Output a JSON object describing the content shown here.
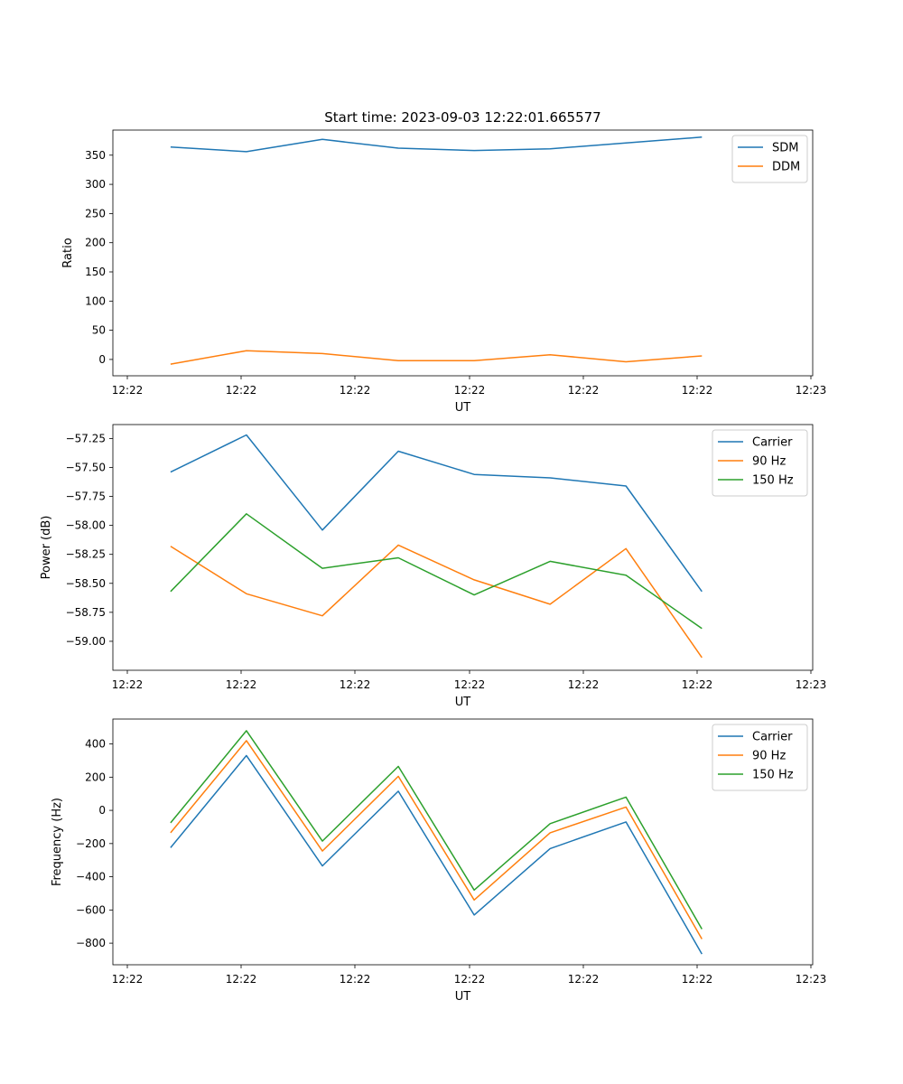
{
  "title": "Start time: 2023-09-03 12:22:01.665577",
  "chart_data": [
    {
      "type": "line",
      "xlabel": "UT",
      "ylabel": "Ratio",
      "x_ticks": [
        "12:22",
        "12:22",
        "12:22",
        "12:22",
        "12:22",
        "12:22",
        "12:23"
      ],
      "x": [
        1,
        2,
        3,
        4,
        5,
        6,
        7,
        8
      ],
      "xlim": [
        0.24,
        9.46
      ],
      "ylim": [
        -28,
        393
      ],
      "yticks": [
        0,
        50,
        100,
        150,
        200,
        250,
        300,
        350
      ],
      "ytick_labels": [
        "0",
        "50",
        "100",
        "150",
        "200",
        "250",
        "300",
        "350"
      ],
      "legend_loc": "upper right",
      "series": [
        {
          "name": "SDM",
          "color": "#1f77b4",
          "values": [
            364,
            356,
            377,
            362,
            358,
            361,
            371,
            381
          ]
        },
        {
          "name": "DDM",
          "color": "#ff7f0e",
          "values": [
            -8,
            15,
            10,
            -2,
            -2,
            8,
            -4,
            6
          ]
        }
      ]
    },
    {
      "type": "line",
      "xlabel": "UT",
      "ylabel": "Power (dB)",
      "x_ticks": [
        "12:22",
        "12:22",
        "12:22",
        "12:22",
        "12:22",
        "12:22",
        "12:23"
      ],
      "x": [
        1,
        2,
        3,
        4,
        5,
        6,
        7,
        8
      ],
      "xlim": [
        0.24,
        9.46
      ],
      "ylim": [
        -59.25,
        -57.13
      ],
      "yticks": [
        -59.0,
        -58.75,
        -58.5,
        -58.25,
        -58.0,
        -57.75,
        -57.5,
        -57.25
      ],
      "ytick_labels": [
        "−59.00",
        "−58.75",
        "−58.50",
        "−58.25",
        "−58.00",
        "−57.75",
        "−57.50",
        "−57.25"
      ],
      "legend_loc": "upper right",
      "series": [
        {
          "name": "Carrier",
          "color": "#1f77b4",
          "values": [
            -57.54,
            -57.22,
            -58.04,
            -57.36,
            -57.56,
            -57.59,
            -57.66,
            -58.57
          ]
        },
        {
          "name": "90 Hz",
          "color": "#ff7f0e",
          "values": [
            -58.18,
            -58.59,
            -58.78,
            -58.17,
            -58.47,
            -58.68,
            -58.2,
            -59.14
          ]
        },
        {
          "name": "150 Hz",
          "color": "#2ca02c",
          "values": [
            -58.57,
            -57.9,
            -58.37,
            -58.28,
            -58.6,
            -58.31,
            -58.43,
            -58.89
          ]
        }
      ]
    },
    {
      "type": "line",
      "xlabel": "UT",
      "ylabel": "Frequency (Hz)",
      "x_ticks": [
        "12:22",
        "12:22",
        "12:22",
        "12:22",
        "12:22",
        "12:22",
        "12:23"
      ],
      "x": [
        1,
        2,
        3,
        4,
        5,
        6,
        7,
        8
      ],
      "xlim": [
        0.24,
        9.46
      ],
      "ylim": [
        -930,
        550
      ],
      "yticks": [
        -800,
        -600,
        -400,
        -200,
        0,
        200,
        400
      ],
      "ytick_labels": [
        "−800",
        "−600",
        "−400",
        "−200",
        "0",
        "200",
        "400"
      ],
      "legend_loc": "upper right",
      "series": [
        {
          "name": "Carrier",
          "color": "#1f77b4",
          "values": [
            -225,
            330,
            -335,
            115,
            -630,
            -230,
            -70,
            -865
          ]
        },
        {
          "name": "90 Hz",
          "color": "#ff7f0e",
          "values": [
            -135,
            420,
            -245,
            205,
            -540,
            -135,
            20,
            -775
          ]
        },
        {
          "name": "150 Hz",
          "color": "#2ca02c",
          "values": [
            -75,
            480,
            -185,
            265,
            -480,
            -80,
            80,
            -715
          ]
        }
      ]
    }
  ]
}
